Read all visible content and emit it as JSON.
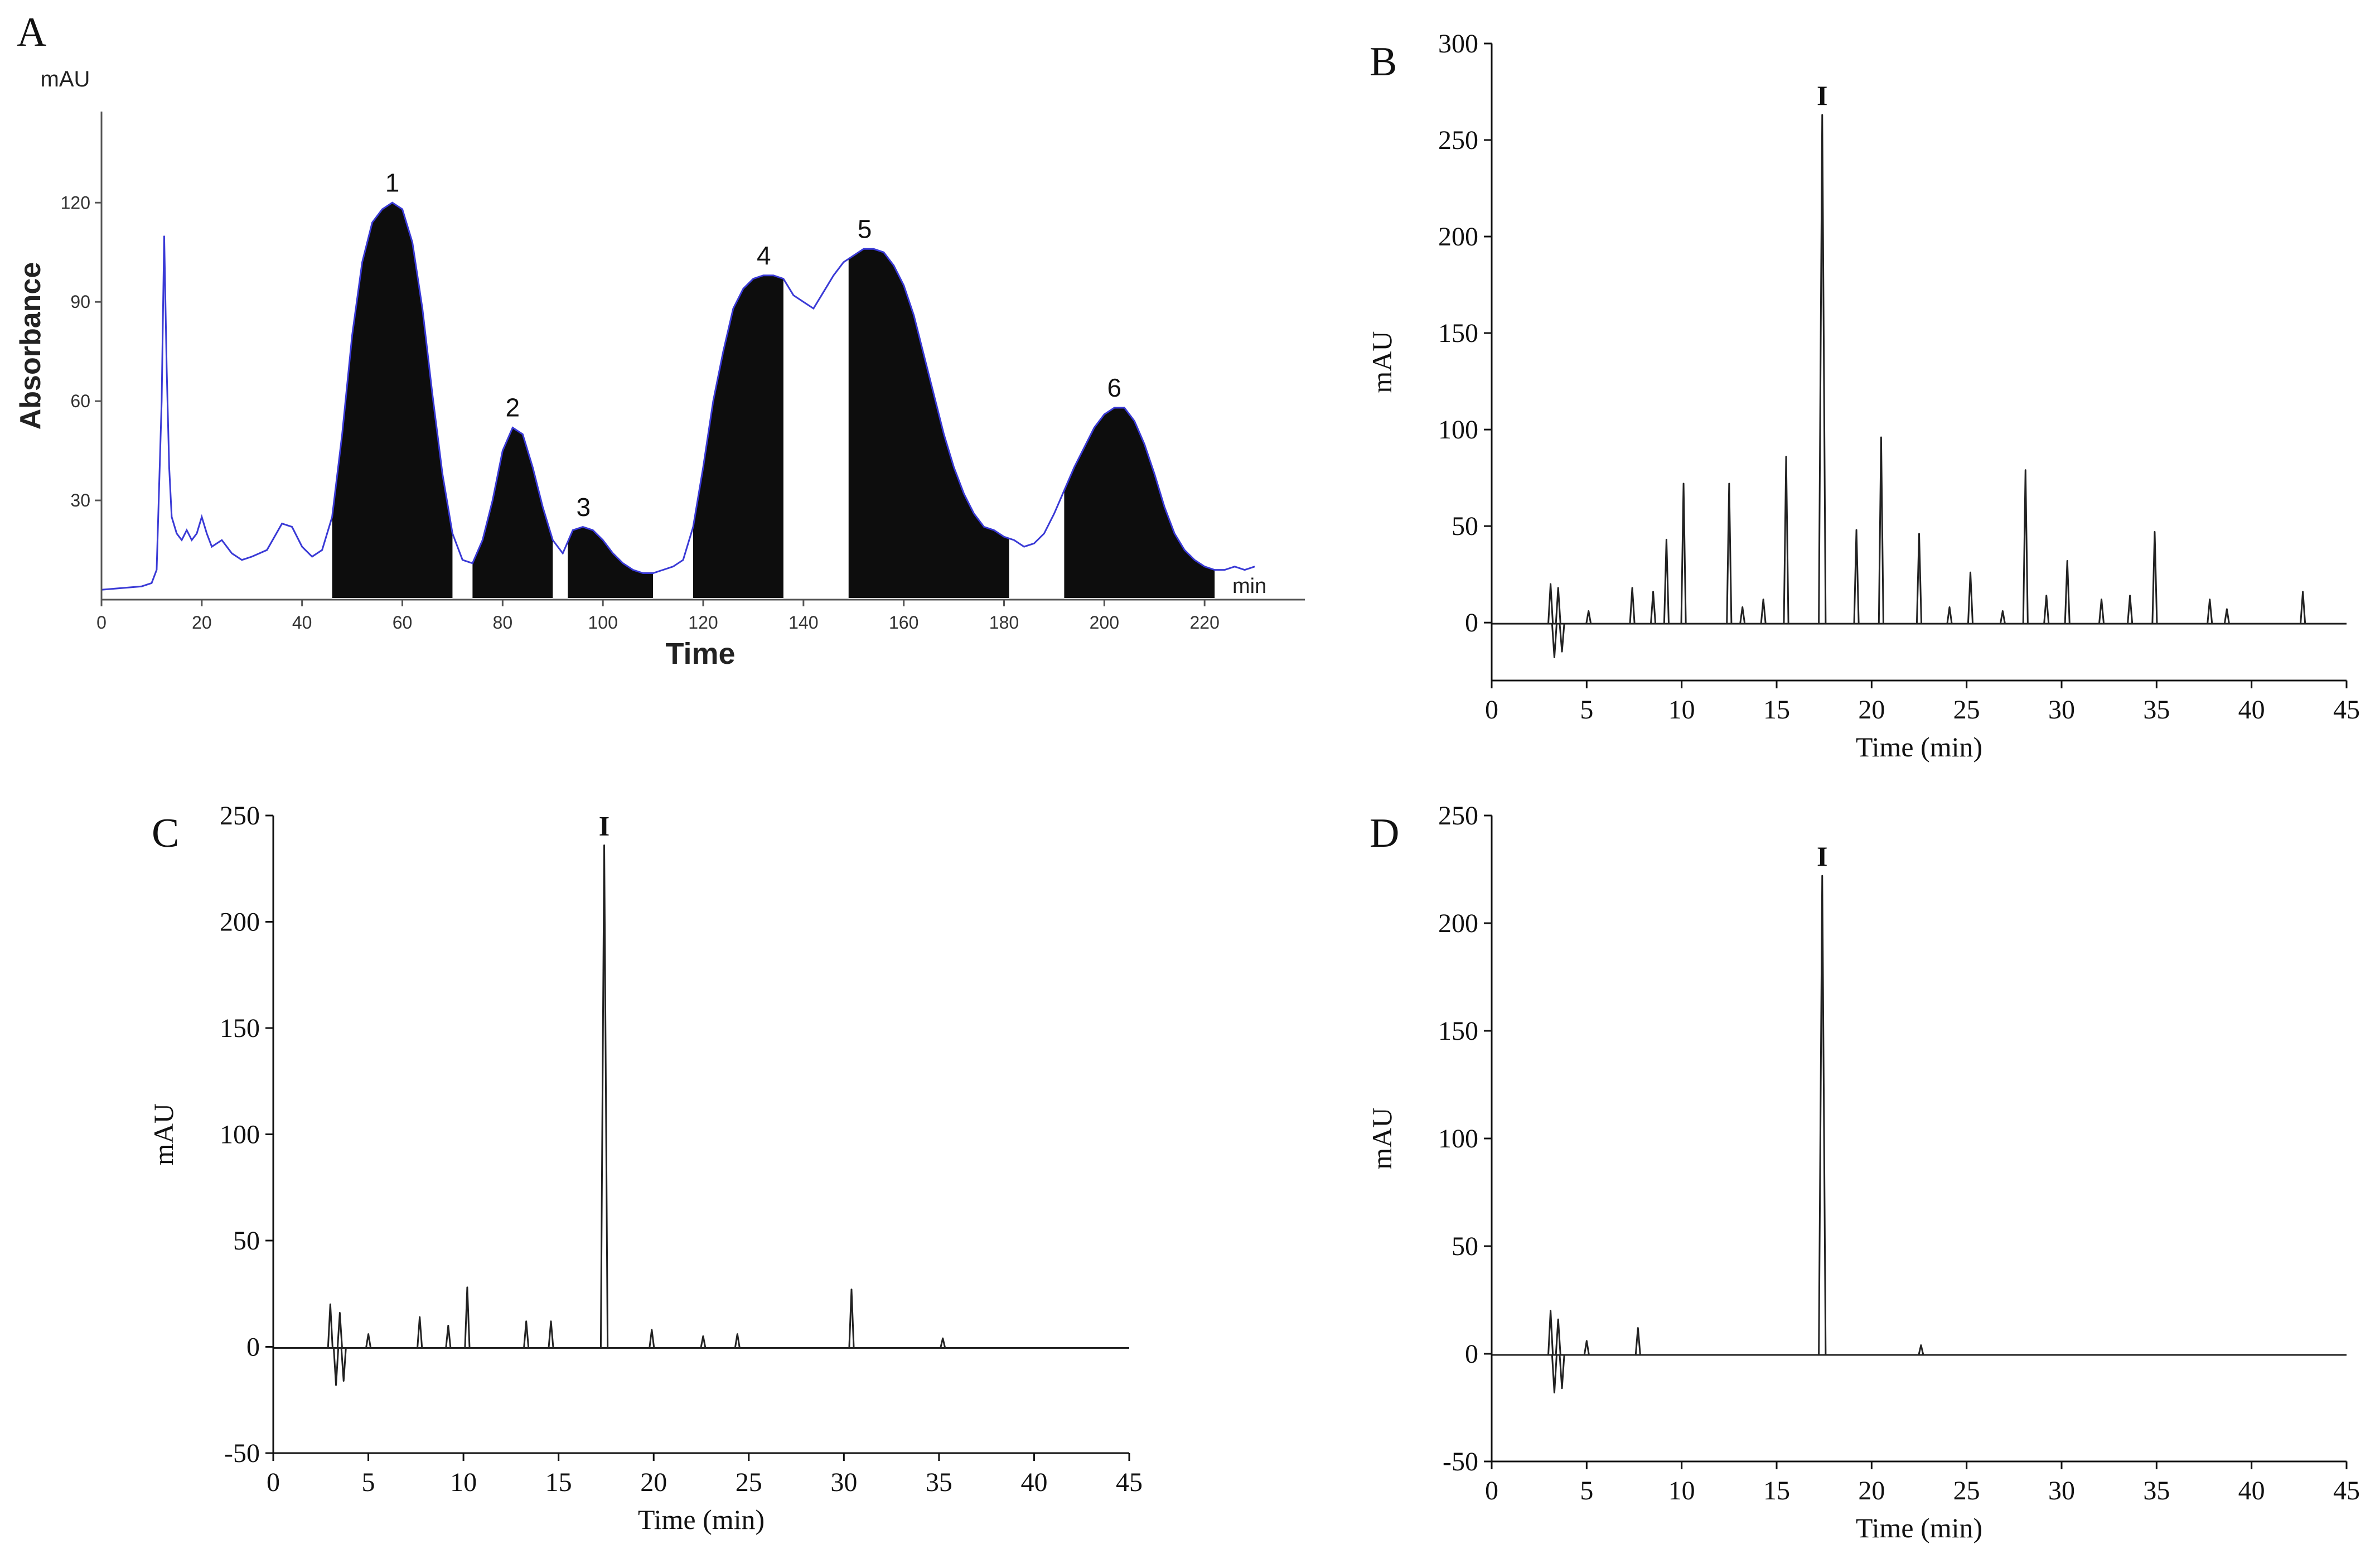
{
  "chart_data": [
    {
      "type": "area",
      "panel_label": "A",
      "xlabel": "Time",
      "x_unit": "min",
      "ylabel": "Absorbance",
      "y_unit": "mAU",
      "xlim": [
        0,
        240
      ],
      "ylim": [
        0,
        145
      ],
      "xticks": [
        0,
        20,
        40,
        60,
        80,
        100,
        120,
        140,
        160,
        180,
        200,
        220
      ],
      "yticks": [
        30,
        60,
        90,
        120
      ],
      "line_color": "#3a3ad6",
      "fill_color": "#0d0d0d",
      "trace": {
        "x": [
          0,
          8,
          10,
          11,
          12,
          12.5,
          13,
          13.5,
          14,
          15,
          16,
          17,
          18,
          19,
          20,
          21,
          22,
          24,
          26,
          28,
          30,
          33,
          36,
          38,
          40,
          42,
          44,
          46,
          48,
          50,
          52,
          54,
          56,
          58,
          60,
          62,
          64,
          66,
          68,
          70,
          72,
          74,
          76,
          78,
          80,
          82,
          84,
          86,
          88,
          90,
          92,
          94,
          96,
          98,
          100,
          102,
          104,
          106,
          108,
          110,
          112,
          114,
          116,
          118,
          120,
          122,
          124,
          126,
          128,
          130,
          132,
          134,
          136,
          138,
          140,
          142,
          144,
          146,
          148,
          150,
          152,
          154,
          156,
          158,
          160,
          162,
          164,
          166,
          168,
          170,
          172,
          174,
          176,
          178,
          180,
          182,
          184,
          186,
          188,
          190,
          192,
          194,
          196,
          198,
          200,
          202,
          204,
          206,
          208,
          210,
          212,
          214,
          216,
          218,
          220,
          222,
          224,
          226,
          228,
          230
        ],
        "y": [
          3,
          4,
          5,
          9,
          60,
          110,
          70,
          40,
          25,
          20,
          18,
          21,
          18,
          20,
          25,
          20,
          16,
          18,
          14,
          12,
          13,
          15,
          23,
          22,
          16,
          13,
          15,
          25,
          50,
          80,
          102,
          114,
          118,
          120,
          118,
          108,
          88,
          62,
          38,
          20,
          12,
          11,
          18,
          30,
          45,
          52,
          50,
          40,
          28,
          18,
          14,
          21,
          22,
          21,
          18,
          14,
          11,
          9,
          8,
          8,
          9,
          10,
          12,
          22,
          40,
          60,
          75,
          88,
          94,
          97,
          98,
          98,
          97,
          92,
          90,
          88,
          93,
          98,
          102,
          104,
          106,
          106,
          105,
          101,
          95,
          86,
          74,
          62,
          50,
          40,
          32,
          26,
          22,
          21,
          19,
          18,
          16,
          17,
          20,
          26,
          33,
          40,
          46,
          52,
          56,
          58,
          58,
          54,
          47,
          38,
          28,
          20,
          15,
          12,
          10,
          9,
          9,
          10,
          9,
          10
        ]
      },
      "fractions": [
        {
          "label": "1",
          "start": 46,
          "end": 70
        },
        {
          "label": "2",
          "start": 74,
          "end": 90
        },
        {
          "label": "3",
          "start": 93,
          "end": 110
        },
        {
          "label": "4",
          "start": 118,
          "end": 136
        },
        {
          "label": "5",
          "start": 149,
          "end": 181
        },
        {
          "label": "6",
          "start": 192,
          "end": 222
        }
      ]
    },
    {
      "type": "line",
      "panel_label": "B",
      "xlabel": "Time (min)",
      "ylabel": "mAU",
      "xlim": [
        0,
        45
      ],
      "ylim": [
        -30,
        300
      ],
      "xticks": [
        0,
        5,
        10,
        15,
        20,
        25,
        30,
        35,
        40,
        45
      ],
      "yticks": [
        0,
        50,
        100,
        150,
        200,
        250,
        300
      ],
      "peak_marker": {
        "label": "I",
        "x": 17.4,
        "y": 263
      },
      "peaks": [
        {
          "x": 3.1,
          "y": 20
        },
        {
          "x": 3.3,
          "y": -18
        },
        {
          "x": 3.5,
          "y": 18
        },
        {
          "x": 3.7,
          "y": -15
        },
        {
          "x": 5.1,
          "y": 6
        },
        {
          "x": 7.4,
          "y": 18
        },
        {
          "x": 8.5,
          "y": 16
        },
        {
          "x": 9.2,
          "y": 43
        },
        {
          "x": 10.1,
          "y": 72
        },
        {
          "x": 12.5,
          "y": 72
        },
        {
          "x": 13.2,
          "y": 8
        },
        {
          "x": 14.3,
          "y": 12
        },
        {
          "x": 15.5,
          "y": 86
        },
        {
          "x": 17.4,
          "y": 263
        },
        {
          "x": 19.2,
          "y": 48
        },
        {
          "x": 20.5,
          "y": 96
        },
        {
          "x": 22.5,
          "y": 46
        },
        {
          "x": 24.1,
          "y": 8
        },
        {
          "x": 25.2,
          "y": 26
        },
        {
          "x": 26.9,
          "y": 6
        },
        {
          "x": 28.1,
          "y": 79
        },
        {
          "x": 29.2,
          "y": 14
        },
        {
          "x": 30.3,
          "y": 32
        },
        {
          "x": 32.1,
          "y": 12
        },
        {
          "x": 33.6,
          "y": 14
        },
        {
          "x": 34.9,
          "y": 47
        },
        {
          "x": 37.8,
          "y": 12
        },
        {
          "x": 38.7,
          "y": 7
        },
        {
          "x": 42.7,
          "y": 16
        }
      ]
    },
    {
      "type": "line",
      "panel_label": "C",
      "xlabel": "Time (min)",
      "ylabel": "mAU",
      "xlim": [
        0,
        45
      ],
      "ylim": [
        -50,
        250
      ],
      "xticks": [
        0,
        5,
        10,
        15,
        20,
        25,
        30,
        35,
        40,
        45
      ],
      "yticks": [
        -50,
        0,
        50,
        100,
        150,
        200,
        250
      ],
      "peak_marker": {
        "label": "I",
        "x": 17.4,
        "y": 236
      },
      "peaks": [
        {
          "x": 3.0,
          "y": 20
        },
        {
          "x": 3.3,
          "y": -18
        },
        {
          "x": 3.5,
          "y": 16
        },
        {
          "x": 3.7,
          "y": -16
        },
        {
          "x": 5.0,
          "y": 6
        },
        {
          "x": 7.7,
          "y": 14
        },
        {
          "x": 9.2,
          "y": 10
        },
        {
          "x": 10.2,
          "y": 28
        },
        {
          "x": 13.3,
          "y": 12
        },
        {
          "x": 14.6,
          "y": 12
        },
        {
          "x": 17.4,
          "y": 236
        },
        {
          "x": 19.9,
          "y": 8
        },
        {
          "x": 22.6,
          "y": 5
        },
        {
          "x": 24.4,
          "y": 6
        },
        {
          "x": 30.4,
          "y": 27
        },
        {
          "x": 35.2,
          "y": 4
        }
      ]
    },
    {
      "type": "line",
      "panel_label": "D",
      "xlabel": "Time (min)",
      "ylabel": "mAU",
      "xlim": [
        0,
        45
      ],
      "ylim": [
        -50,
        250
      ],
      "xticks": [
        0,
        5,
        10,
        15,
        20,
        25,
        30,
        35,
        40,
        45
      ],
      "yticks": [
        -50,
        0,
        50,
        100,
        150,
        200,
        250
      ],
      "peak_marker": {
        "label": "I",
        "x": 17.4,
        "y": 222
      },
      "peaks": [
        {
          "x": 3.1,
          "y": 20
        },
        {
          "x": 3.3,
          "y": -18
        },
        {
          "x": 3.5,
          "y": 16
        },
        {
          "x": 3.7,
          "y": -16
        },
        {
          "x": 5.0,
          "y": 6
        },
        {
          "x": 7.7,
          "y": 12
        },
        {
          "x": 17.4,
          "y": 222
        },
        {
          "x": 22.6,
          "y": 4
        }
      ]
    }
  ]
}
